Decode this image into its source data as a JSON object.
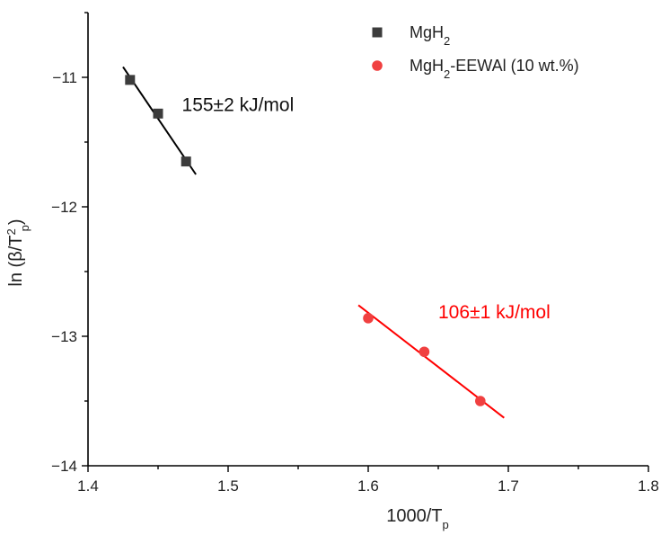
{
  "chart_data": {
    "type": "scatter",
    "xlabel": {
      "main": "1000/T",
      "sub": "p"
    },
    "ylabel": {
      "prefix": "ln (β/T",
      "sup": "2",
      "sub": "p",
      "suffix": ")"
    },
    "xlim": [
      1.4,
      1.8
    ],
    "ylim": [
      -14,
      -10.5
    ],
    "xticks": [
      1.4,
      1.5,
      1.6,
      1.7,
      1.8
    ],
    "xtick_labels": [
      "1.4",
      "1.5",
      "1.6",
      "1.7",
      "1.8"
    ],
    "yticks": [
      -14,
      -13,
      -12,
      -11
    ],
    "ytick_labels": [
      "−14",
      "−13",
      "−12",
      "−11"
    ],
    "legend_position": "top-right",
    "grid": false,
    "series": [
      {
        "name_main": "MgH",
        "name_sub": "2",
        "name_suffix": "",
        "marker": "square",
        "color": "#3c3c3c",
        "line_color": "#000000",
        "x": [
          1.43,
          1.45,
          1.47
        ],
        "y": [
          -11.02,
          -11.28,
          -11.65
        ],
        "fit": {
          "x": [
            1.425,
            1.477
          ],
          "y": [
            -10.92,
            -11.75
          ]
        },
        "annotation": "155±2 kJ/mol",
        "annotation_pos": {
          "x": 1.467,
          "y": -11.26
        }
      },
      {
        "name_main": "MgH",
        "name_sub": "2",
        "name_suffix": "-EEWAl (10 wt.%)",
        "marker": "circle",
        "color": "#f04040",
        "line_color": "#ff0000",
        "x": [
          1.6,
          1.64,
          1.68
        ],
        "y": [
          -12.86,
          -13.12,
          -13.5
        ],
        "fit": {
          "x": [
            1.593,
            1.697
          ],
          "y": [
            -12.76,
            -13.63
          ]
        },
        "annotation": "106±1 kJ/mol",
        "annotation_pos": {
          "x": 1.65,
          "y": -12.86
        }
      }
    ]
  }
}
